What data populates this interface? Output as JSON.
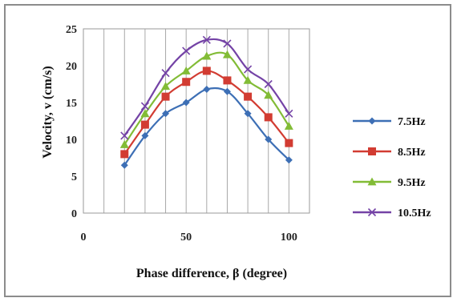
{
  "chart_data": {
    "type": "line",
    "xlabel": "Phase difference, β (degree)",
    "ylabel": "Velocity, v (cm/s)",
    "xlim": [
      0,
      110
    ],
    "ylim": [
      0,
      25
    ],
    "x_ticks": [
      "0",
      "50",
      "100"
    ],
    "y_ticks": [
      "0",
      "5",
      "10",
      "15",
      "20",
      "25"
    ],
    "grid": "vertical",
    "legend_position": "right",
    "x": [
      20,
      30,
      40,
      50,
      60,
      70,
      80,
      90,
      100
    ],
    "series": [
      {
        "name": "7.5Hz",
        "color": "#3d6fb5",
        "marker": "diamond",
        "values": [
          6.5,
          10.5,
          13.5,
          15.0,
          16.8,
          16.5,
          13.5,
          10.0,
          7.2
        ]
      },
      {
        "name": "8.5Hz",
        "color": "#d23c32",
        "marker": "square",
        "values": [
          8.0,
          12.0,
          15.8,
          17.8,
          19.3,
          18.0,
          15.8,
          13.0,
          9.5
        ]
      },
      {
        "name": "9.5Hz",
        "color": "#82bc36",
        "marker": "triangle",
        "values": [
          9.3,
          13.5,
          17.2,
          19.3,
          21.3,
          21.5,
          18.0,
          16.0,
          11.8
        ]
      },
      {
        "name": "10.5Hz",
        "color": "#7443a6",
        "marker": "x",
        "values": [
          10.5,
          14.5,
          19.0,
          22.0,
          23.5,
          23.0,
          19.5,
          17.5,
          13.5
        ]
      }
    ]
  }
}
